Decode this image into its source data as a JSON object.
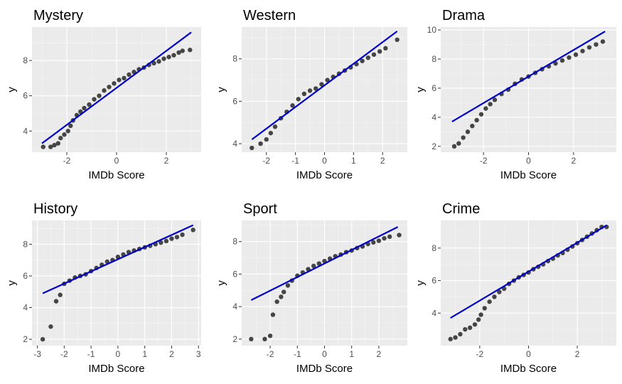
{
  "chart_data": [
    {
      "type": "scatter",
      "title": "Mystery",
      "xlabel": "IMDb Score",
      "ylabel": "y",
      "xlim": [
        -3.4,
        3.4
      ],
      "ylim": [
        2.8,
        9.9
      ],
      "xticks": [
        -2,
        0,
        2
      ],
      "yticks": [
        4,
        6,
        8
      ],
      "series": [
        {
          "values": [
            [
              -2.95,
              3.1
            ],
            [
              -2.65,
              3.1
            ],
            [
              -2.5,
              3.2
            ],
            [
              -2.35,
              3.3
            ],
            [
              -2.25,
              3.6
            ],
            [
              -2.1,
              3.8
            ],
            [
              -1.95,
              4.0
            ],
            [
              -1.85,
              4.3
            ],
            [
              -1.75,
              4.6
            ],
            [
              -1.6,
              4.9
            ],
            [
              -1.45,
              5.1
            ],
            [
              -1.3,
              5.3
            ],
            [
              -1.1,
              5.5
            ],
            [
              -0.9,
              5.8
            ],
            [
              -0.7,
              6.0
            ],
            [
              -0.5,
              6.3
            ],
            [
              -0.3,
              6.5
            ],
            [
              -0.1,
              6.7
            ],
            [
              0.1,
              6.9
            ],
            [
              0.3,
              7.0
            ],
            [
              0.5,
              7.2
            ],
            [
              0.7,
              7.35
            ],
            [
              0.9,
              7.5
            ],
            [
              1.1,
              7.6
            ],
            [
              1.3,
              7.75
            ],
            [
              1.5,
              7.85
            ],
            [
              1.7,
              7.95
            ],
            [
              1.9,
              8.1
            ],
            [
              2.1,
              8.2
            ],
            [
              2.3,
              8.3
            ],
            [
              2.5,
              8.45
            ],
            [
              2.65,
              8.55
            ],
            [
              2.95,
              8.6
            ]
          ]
        },
        {
          "values": [
            [
              -3.0,
              3.3
            ],
            [
              3.0,
              9.6
            ]
          ]
        }
      ]
    },
    {
      "type": "scatter",
      "title": "Western",
      "xlabel": "IMDb Score",
      "ylabel": "y",
      "xlim": [
        -2.85,
        2.85
      ],
      "ylim": [
        3.6,
        9.5
      ],
      "xticks": [
        -2,
        -1,
        0,
        1,
        2
      ],
      "yticks": [
        4,
        6,
        8
      ],
      "series": [
        {
          "values": [
            [
              -2.5,
              3.8
            ],
            [
              -2.2,
              4.0
            ],
            [
              -2.0,
              4.2
            ],
            [
              -1.85,
              4.5
            ],
            [
              -1.7,
              4.8
            ],
            [
              -1.5,
              5.2
            ],
            [
              -1.3,
              5.5
            ],
            [
              -1.1,
              5.8
            ],
            [
              -0.9,
              6.1
            ],
            [
              -0.7,
              6.35
            ],
            [
              -0.5,
              6.5
            ],
            [
              -0.3,
              6.6
            ],
            [
              -0.1,
              6.8
            ],
            [
              0.1,
              7.0
            ],
            [
              0.3,
              7.15
            ],
            [
              0.5,
              7.3
            ],
            [
              0.7,
              7.45
            ],
            [
              0.9,
              7.6
            ],
            [
              1.1,
              7.75
            ],
            [
              1.3,
              7.9
            ],
            [
              1.5,
              8.05
            ],
            [
              1.7,
              8.2
            ],
            [
              1.9,
              8.35
            ],
            [
              2.1,
              8.5
            ],
            [
              2.5,
              8.9
            ]
          ]
        },
        {
          "values": [
            [
              -2.5,
              4.2
            ],
            [
              2.5,
              9.3
            ]
          ]
        }
      ]
    },
    {
      "type": "scatter",
      "title": "Drama",
      "xlabel": "IMDb Score",
      "ylabel": "y",
      "xlim": [
        -3.9,
        3.9
      ],
      "ylim": [
        1.6,
        10.2
      ],
      "xticks": [
        -2,
        0,
        2
      ],
      "yticks": [
        2,
        4,
        6,
        8,
        10
      ],
      "series": [
        {
          "values": [
            [
              -3.3,
              2.0
            ],
            [
              -3.1,
              2.2
            ],
            [
              -2.9,
              2.6
            ],
            [
              -2.7,
              3.0
            ],
            [
              -2.5,
              3.4
            ],
            [
              -2.3,
              3.8
            ],
            [
              -2.1,
              4.2
            ],
            [
              -1.9,
              4.6
            ],
            [
              -1.7,
              4.9
            ],
            [
              -1.5,
              5.2
            ],
            [
              -1.2,
              5.6
            ],
            [
              -0.9,
              5.9
            ],
            [
              -0.6,
              6.3
            ],
            [
              -0.3,
              6.6
            ],
            [
              0.0,
              6.8
            ],
            [
              0.3,
              7.05
            ],
            [
              0.6,
              7.3
            ],
            [
              0.9,
              7.5
            ],
            [
              1.2,
              7.7
            ],
            [
              1.5,
              7.9
            ],
            [
              1.8,
              8.1
            ],
            [
              2.1,
              8.3
            ],
            [
              2.4,
              8.55
            ],
            [
              2.7,
              8.8
            ],
            [
              3.0,
              9.0
            ],
            [
              3.3,
              9.2
            ]
          ]
        },
        {
          "values": [
            [
              -3.4,
              3.7
            ],
            [
              3.4,
              9.9
            ]
          ]
        }
      ]
    },
    {
      "type": "scatter",
      "title": "History",
      "xlabel": "IMDb Score",
      "ylabel": "y",
      "xlim": [
        -3.2,
        3.1
      ],
      "ylim": [
        1.6,
        9.5
      ],
      "xticks": [
        -3,
        -2,
        -1,
        0,
        1,
        2,
        3
      ],
      "yticks": [
        2,
        4,
        6,
        8
      ],
      "series": [
        {
          "values": [
            [
              -2.8,
              2.0
            ],
            [
              -2.5,
              2.8
            ],
            [
              -2.3,
              4.4
            ],
            [
              -2.15,
              4.8
            ],
            [
              -2.0,
              5.5
            ],
            [
              -1.8,
              5.7
            ],
            [
              -1.6,
              5.9
            ],
            [
              -1.4,
              6.0
            ],
            [
              -1.2,
              6.1
            ],
            [
              -1.0,
              6.3
            ],
            [
              -0.8,
              6.5
            ],
            [
              -0.6,
              6.7
            ],
            [
              -0.4,
              6.9
            ],
            [
              -0.2,
              7.0
            ],
            [
              0.0,
              7.2
            ],
            [
              0.2,
              7.35
            ],
            [
              0.4,
              7.5
            ],
            [
              0.6,
              7.6
            ],
            [
              0.8,
              7.7
            ],
            [
              1.0,
              7.8
            ],
            [
              1.2,
              7.9
            ],
            [
              1.4,
              8.0
            ],
            [
              1.6,
              8.1
            ],
            [
              1.8,
              8.2
            ],
            [
              2.0,
              8.35
            ],
            [
              2.2,
              8.45
            ],
            [
              2.4,
              8.6
            ],
            [
              2.8,
              8.9
            ]
          ]
        },
        {
          "values": [
            [
              -2.8,
              4.9
            ],
            [
              2.8,
              9.2
            ]
          ]
        }
      ]
    },
    {
      "type": "scatter",
      "title": "Sport",
      "xlabel": "IMDb Score",
      "ylabel": "y",
      "xlim": [
        -3.05,
        3.05
      ],
      "ylim": [
        1.6,
        9.3
      ],
      "xticks": [
        -2,
        -1,
        0,
        1,
        2
      ],
      "yticks": [
        2,
        4,
        6,
        8
      ],
      "series": [
        {
          "values": [
            [
              -2.7,
              2.0
            ],
            [
              -2.2,
              2.0
            ],
            [
              -2.0,
              2.2
            ],
            [
              -1.9,
              3.5
            ],
            [
              -1.75,
              4.3
            ],
            [
              -1.6,
              4.6
            ],
            [
              -1.5,
              4.9
            ],
            [
              -1.35,
              5.3
            ],
            [
              -1.2,
              5.6
            ],
            [
              -1.0,
              5.9
            ],
            [
              -0.8,
              6.1
            ],
            [
              -0.6,
              6.3
            ],
            [
              -0.4,
              6.5
            ],
            [
              -0.2,
              6.65
            ],
            [
              0.0,
              6.8
            ],
            [
              0.2,
              6.95
            ],
            [
              0.4,
              7.1
            ],
            [
              0.6,
              7.2
            ],
            [
              0.8,
              7.35
            ],
            [
              1.0,
              7.45
            ],
            [
              1.2,
              7.6
            ],
            [
              1.4,
              7.7
            ],
            [
              1.6,
              7.85
            ],
            [
              1.8,
              7.95
            ],
            [
              2.0,
              8.05
            ],
            [
              2.2,
              8.2
            ],
            [
              2.4,
              8.3
            ],
            [
              2.75,
              8.4
            ]
          ]
        },
        {
          "values": [
            [
              -2.7,
              4.4
            ],
            [
              2.7,
              8.9
            ]
          ]
        }
      ]
    },
    {
      "type": "scatter",
      "title": "Crime",
      "xlabel": "IMDb Score",
      "ylabel": "y",
      "xlim": [
        -3.6,
        3.6
      ],
      "ylim": [
        2.0,
        9.7
      ],
      "xticks": [
        -2,
        0,
        2
      ],
      "yticks": [
        4,
        6,
        8
      ],
      "series": [
        {
          "values": [
            [
              -3.2,
              2.4
            ],
            [
              -3.0,
              2.5
            ],
            [
              -2.8,
              2.7
            ],
            [
              -2.6,
              3.0
            ],
            [
              -2.4,
              3.1
            ],
            [
              -2.2,
              3.3
            ],
            [
              -2.05,
              3.6
            ],
            [
              -1.95,
              3.9
            ],
            [
              -1.8,
              4.3
            ],
            [
              -1.6,
              4.7
            ],
            [
              -1.4,
              5.0
            ],
            [
              -1.2,
              5.3
            ],
            [
              -1.0,
              5.5
            ],
            [
              -0.8,
              5.8
            ],
            [
              -0.6,
              6.0
            ],
            [
              -0.4,
              6.2
            ],
            [
              -0.2,
              6.35
            ],
            [
              0.0,
              6.5
            ],
            [
              0.2,
              6.7
            ],
            [
              0.4,
              6.85
            ],
            [
              0.6,
              7.0
            ],
            [
              0.8,
              7.2
            ],
            [
              1.0,
              7.35
            ],
            [
              1.2,
              7.55
            ],
            [
              1.4,
              7.7
            ],
            [
              1.6,
              7.9
            ],
            [
              1.8,
              8.1
            ],
            [
              2.0,
              8.3
            ],
            [
              2.2,
              8.5
            ],
            [
              2.4,
              8.7
            ],
            [
              2.6,
              8.9
            ],
            [
              2.8,
              9.1
            ],
            [
              3.0,
              9.3
            ],
            [
              3.2,
              9.3
            ]
          ]
        },
        {
          "values": [
            [
              -3.2,
              3.7
            ],
            [
              3.2,
              9.4
            ]
          ]
        }
      ]
    }
  ],
  "colors": {
    "panel": "#ebebeb",
    "grid_major": "#ffffff",
    "grid_minor": "#f5f5f5",
    "points": "#333333",
    "line": "#0000cc",
    "tick_text": "#4d4d4d"
  }
}
